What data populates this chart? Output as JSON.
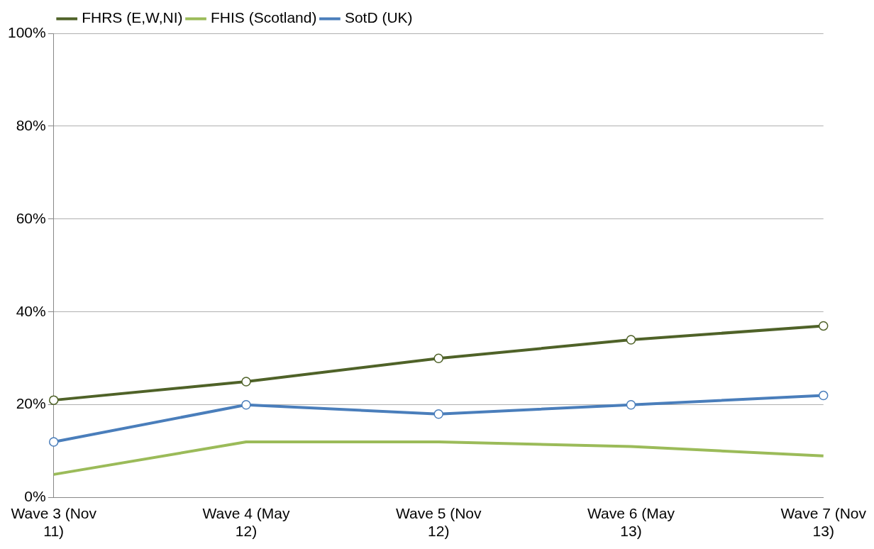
{
  "chart_data": {
    "type": "line",
    "categories": [
      "Wave 3 (Nov 11)",
      "Wave 4 (May 12)",
      "Wave 5 (Nov 12)",
      "Wave 6 (May 13)",
      "Wave 7 (Nov 13)"
    ],
    "series": [
      {
        "name": "FHRS (E,W,NI)",
        "color": "#4f6228",
        "values": [
          21,
          25,
          30,
          34,
          37
        ],
        "marker": "circle"
      },
      {
        "name": "FHIS (Scotland)",
        "color": "#9bbb59",
        "values": [
          5,
          12,
          12,
          11,
          9
        ]
      },
      {
        "name": "SotD (UK)",
        "color": "#4a7ebb",
        "values": [
          12,
          20,
          18,
          20,
          22
        ],
        "marker": "circle"
      }
    ],
    "ylim": [
      0,
      100
    ],
    "yticks": [
      {
        "value": 0,
        "label": "0%"
      },
      {
        "value": 20,
        "label": "20%"
      },
      {
        "value": 40,
        "label": "40%"
      },
      {
        "value": 60,
        "label": "60%"
      },
      {
        "value": 80,
        "label": "80%"
      },
      {
        "value": 100,
        "label": "100%"
      }
    ],
    "grid": "y",
    "legend": "top left",
    "line_style": "solid"
  }
}
